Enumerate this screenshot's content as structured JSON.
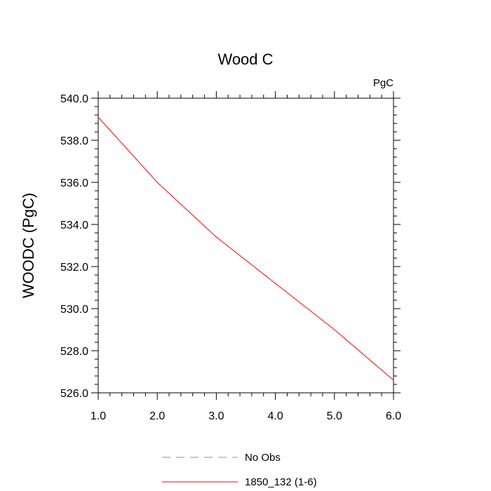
{
  "chart_data": {
    "type": "line",
    "title": "Wood C",
    "units_label": "PgC",
    "xlabel": "",
    "ylabel": "WOODC  (PgC)",
    "xlim": [
      1.0,
      6.0
    ],
    "ylim": [
      526.0,
      540.0
    ],
    "x_ticks": [
      1.0,
      2.0,
      3.0,
      4.0,
      5.0,
      6.0
    ],
    "x_tick_labels": [
      "1.0",
      "2.0",
      "3.0",
      "4.0",
      "5.0",
      "6.0"
    ],
    "y_ticks": [
      526.0,
      528.0,
      530.0,
      532.0,
      534.0,
      536.0,
      538.0,
      540.0
    ],
    "y_tick_labels": [
      "526.0",
      "528.0",
      "530.0",
      "532.0",
      "534.0",
      "536.0",
      "538.0",
      "540.0"
    ],
    "grid": false,
    "legend_position": "bottom",
    "series": [
      {
        "name": "No Obs",
        "color": "#8080ff",
        "dash": "dashed",
        "x": [],
        "y": []
      },
      {
        "name": "1850_132 (1-6)",
        "color": "#ff0000",
        "dash": "solid",
        "x": [
          1.0,
          2.0,
          3.0,
          4.0,
          5.0,
          6.0
        ],
        "y": [
          539.1,
          536.0,
          533.4,
          531.2,
          529.0,
          526.6
        ]
      }
    ]
  }
}
